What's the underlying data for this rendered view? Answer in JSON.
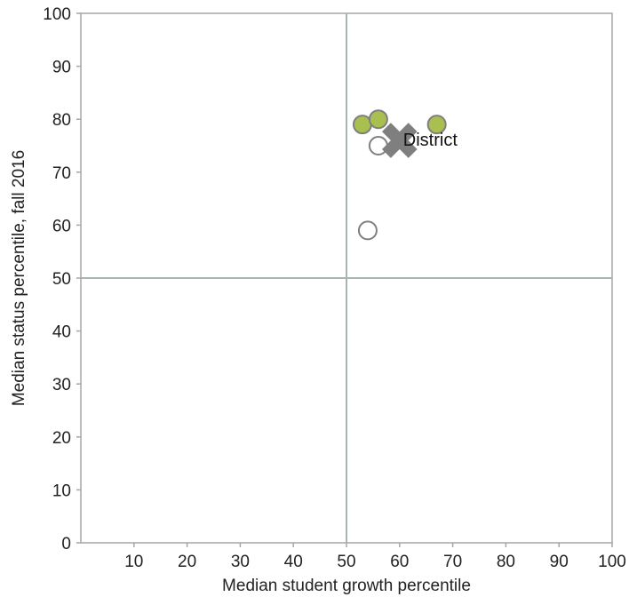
{
  "chart_data": {
    "type": "scatter",
    "xlabel": "Median student growth percentile",
    "ylabel": "Median status percentile, fall 2016",
    "xlim": [
      0,
      100
    ],
    "ylim": [
      0,
      100
    ],
    "x_ticks": [
      "10",
      "20",
      "30",
      "40",
      "50",
      "60",
      "70",
      "80",
      "90",
      "100"
    ],
    "y_ticks": [
      "0",
      "10",
      "20",
      "30",
      "40",
      "50",
      "60",
      "70",
      "80",
      "90",
      "100"
    ],
    "reference_lines": {
      "x": 50,
      "y": 50
    },
    "grid": false,
    "series": [
      {
        "marker": "filled-circle",
        "color": "#a9bf4f",
        "points": [
          {
            "x": 53,
            "y": 79
          },
          {
            "x": 56,
            "y": 80
          },
          {
            "x": 67,
            "y": 79
          }
        ]
      },
      {
        "marker": "open-circle",
        "color": "#ffffff",
        "points": [
          {
            "x": 56,
            "y": 75
          },
          {
            "x": 54,
            "y": 59
          }
        ]
      },
      {
        "name": "District",
        "marker": "x",
        "color": "#7f7f7f",
        "points": [
          {
            "x": 60,
            "y": 76
          }
        ]
      }
    ],
    "annotations": [
      {
        "text": "District",
        "x": 60,
        "y": 76
      }
    ]
  },
  "colors": {
    "axis": "#a6a6a6",
    "reference_line": "#a9b4ae",
    "marker_outline": "#7f7f7f"
  }
}
